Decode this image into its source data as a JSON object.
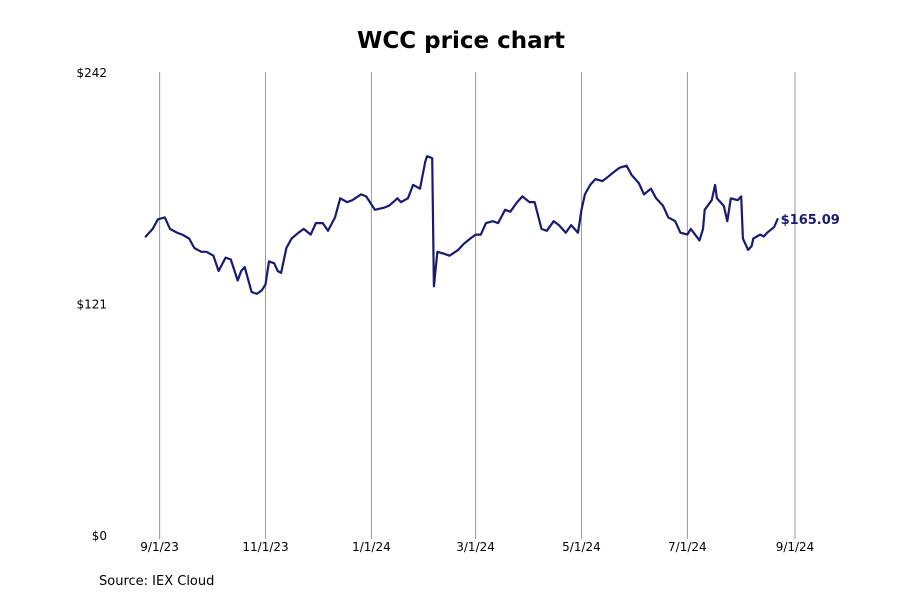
{
  "chart_data": {
    "type": "line",
    "title": "WCC price chart",
    "source": "Source: IEX Cloud",
    "ylim": [
      0,
      242
    ],
    "y_ticks": [
      {
        "value": 0,
        "label": "$0"
      },
      {
        "value": 121,
        "label": "$121"
      },
      {
        "value": 242,
        "label": "$242"
      }
    ],
    "x_range": [
      "2023-08-23",
      "2024-09-01"
    ],
    "x_ticks": [
      {
        "date": "2023-09-01",
        "label": "9/1/23"
      },
      {
        "date": "2023-11-01",
        "label": "11/1/23"
      },
      {
        "date": "2024-01-01",
        "label": "1/1/24"
      },
      {
        "date": "2024-03-01",
        "label": "3/1/24"
      },
      {
        "date": "2024-05-01",
        "label": "5/1/24"
      },
      {
        "date": "2024-07-01",
        "label": "7/1/24"
      },
      {
        "date": "2024-09-01",
        "label": "9/1/24"
      }
    ],
    "grid": "vertical",
    "last_value_label": "$165.09",
    "line_color": "#1a1a6e",
    "grid_color": "#999999",
    "series": [
      {
        "points": [
          [
            "2023-08-24",
            156
          ],
          [
            "2023-08-28",
            160
          ],
          [
            "2023-08-31",
            165
          ],
          [
            "2023-09-04",
            166
          ],
          [
            "2023-09-07",
            160
          ],
          [
            "2023-09-11",
            158
          ],
          [
            "2023-09-14",
            157
          ],
          [
            "2023-09-18",
            155
          ],
          [
            "2023-09-21",
            150
          ],
          [
            "2023-09-25",
            148
          ],
          [
            "2023-09-28",
            148
          ],
          [
            "2023-10-02",
            146
          ],
          [
            "2023-10-05",
            138
          ],
          [
            "2023-10-09",
            145
          ],
          [
            "2023-10-12",
            144
          ],
          [
            "2023-10-16",
            133
          ],
          [
            "2023-10-18",
            138
          ],
          [
            "2023-10-20",
            140
          ],
          [
            "2023-10-24",
            127
          ],
          [
            "2023-10-27",
            126
          ],
          [
            "2023-10-30",
            128
          ],
          [
            "2023-11-01",
            131
          ],
          [
            "2023-11-03",
            143
          ],
          [
            "2023-11-06",
            142
          ],
          [
            "2023-11-08",
            138
          ],
          [
            "2023-11-10",
            137
          ],
          [
            "2023-11-13",
            150
          ],
          [
            "2023-11-16",
            155
          ],
          [
            "2023-11-20",
            158
          ],
          [
            "2023-11-23",
            160
          ],
          [
            "2023-11-27",
            157
          ],
          [
            "2023-11-30",
            163
          ],
          [
            "2023-12-04",
            163
          ],
          [
            "2023-12-07",
            159
          ],
          [
            "2023-12-11",
            166
          ],
          [
            "2023-12-14",
            176
          ],
          [
            "2023-12-18",
            174
          ],
          [
            "2023-12-21",
            175
          ],
          [
            "2023-12-26",
            178
          ],
          [
            "2023-12-29",
            177
          ],
          [
            "2024-01-03",
            170
          ],
          [
            "2024-01-08",
            171
          ],
          [
            "2024-01-11",
            172
          ],
          [
            "2024-01-16",
            176
          ],
          [
            "2024-01-18",
            174
          ],
          [
            "2024-01-22",
            176
          ],
          [
            "2024-01-25",
            183
          ],
          [
            "2024-01-29",
            181
          ],
          [
            "2024-02-01",
            195
          ],
          [
            "2024-02-02",
            198
          ],
          [
            "2024-02-05",
            197
          ],
          [
            "2024-02-06",
            130
          ],
          [
            "2024-02-08",
            148
          ],
          [
            "2024-02-12",
            147
          ],
          [
            "2024-02-15",
            146
          ],
          [
            "2024-02-20",
            149
          ],
          [
            "2024-02-23",
            152
          ],
          [
            "2024-02-27",
            155
          ],
          [
            "2024-03-01",
            157
          ],
          [
            "2024-03-04",
            157
          ],
          [
            "2024-03-07",
            163
          ],
          [
            "2024-03-11",
            164
          ],
          [
            "2024-03-14",
            163
          ],
          [
            "2024-03-18",
            170
          ],
          [
            "2024-03-21",
            169
          ],
          [
            "2024-03-25",
            174
          ],
          [
            "2024-03-28",
            177
          ],
          [
            "2024-04-01",
            174
          ],
          [
            "2024-04-04",
            174
          ],
          [
            "2024-04-08",
            160
          ],
          [
            "2024-04-11",
            159
          ],
          [
            "2024-04-15",
            164
          ],
          [
            "2024-04-18",
            162
          ],
          [
            "2024-04-22",
            158
          ],
          [
            "2024-04-25",
            162
          ],
          [
            "2024-04-29",
            158
          ],
          [
            "2024-05-01",
            170
          ],
          [
            "2024-05-03",
            178
          ],
          [
            "2024-05-06",
            183
          ],
          [
            "2024-05-09",
            186
          ],
          [
            "2024-05-13",
            185
          ],
          [
            "2024-05-16",
            187
          ],
          [
            "2024-05-20",
            190
          ],
          [
            "2024-05-23",
            192
          ],
          [
            "2024-05-27",
            193
          ],
          [
            "2024-05-30",
            188
          ],
          [
            "2024-06-03",
            184
          ],
          [
            "2024-06-06",
            178
          ],
          [
            "2024-06-10",
            181
          ],
          [
            "2024-06-13",
            176
          ],
          [
            "2024-06-17",
            172
          ],
          [
            "2024-06-20",
            166
          ],
          [
            "2024-06-24",
            164
          ],
          [
            "2024-06-27",
            158
          ],
          [
            "2024-07-01",
            157
          ],
          [
            "2024-07-03",
            160
          ],
          [
            "2024-07-08",
            154
          ],
          [
            "2024-07-10",
            160
          ],
          [
            "2024-07-11",
            170
          ],
          [
            "2024-07-15",
            175
          ],
          [
            "2024-07-17",
            183
          ],
          [
            "2024-07-18",
            176
          ],
          [
            "2024-07-22",
            172
          ],
          [
            "2024-07-24",
            164
          ],
          [
            "2024-07-26",
            176
          ],
          [
            "2024-07-30",
            175
          ],
          [
            "2024-08-01",
            177
          ],
          [
            "2024-08-02",
            155
          ],
          [
            "2024-08-05",
            149
          ],
          [
            "2024-08-07",
            151
          ],
          [
            "2024-08-08",
            155
          ],
          [
            "2024-08-12",
            157
          ],
          [
            "2024-08-14",
            156
          ],
          [
            "2024-08-16",
            158
          ],
          [
            "2024-08-20",
            161
          ],
          [
            "2024-08-22",
            165.09
          ]
        ]
      }
    ]
  }
}
